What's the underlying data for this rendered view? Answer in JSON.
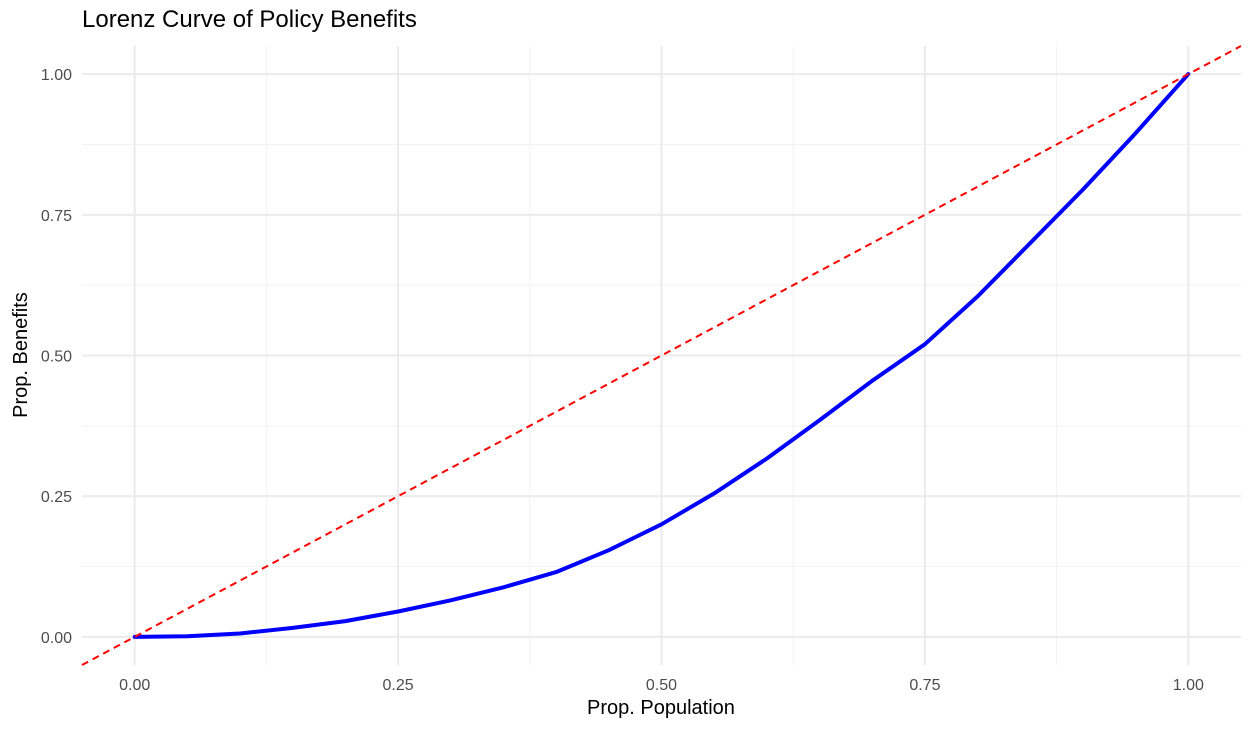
{
  "chart_data": {
    "type": "line",
    "title": "Lorenz Curve of Policy Benefits",
    "xlabel": "Prop. Population",
    "ylabel": "Prop. Benefits",
    "xlim": [
      -0.05,
      1.05
    ],
    "ylim": [
      -0.05,
      1.05
    ],
    "x_ticks": [
      0,
      0.25,
      0.5,
      0.75,
      1
    ],
    "x_tick_labels": [
      "0.00",
      "0.25",
      "0.50",
      "0.75",
      "1.00"
    ],
    "y_ticks": [
      0,
      0.25,
      0.5,
      0.75,
      1
    ],
    "y_tick_labels": [
      "0.00",
      "0.25",
      "0.50",
      "0.75",
      "1.00"
    ],
    "grid": true,
    "series": [
      {
        "style": "solid",
        "color": "#0000ff",
        "x": [
          0,
          0.05,
          0.1,
          0.15,
          0.2,
          0.25,
          0.3,
          0.35,
          0.4,
          0.45,
          0.5,
          0.55,
          0.6,
          0.65,
          0.7,
          0.75,
          0.8,
          0.85,
          0.9,
          0.95,
          1
        ],
        "y": [
          0,
          0.001,
          0.006,
          0.016,
          0.028,
          0.045,
          0.065,
          0.088,
          0.115,
          0.154,
          0.2,
          0.255,
          0.317,
          0.385,
          0.455,
          0.52,
          0.605,
          0.7,
          0.795,
          0.895,
          1
        ]
      },
      {
        "style": "dashed",
        "color": "#ff0000",
        "x": [
          -0.05,
          1.05
        ],
        "y": [
          -0.05,
          1.05
        ]
      }
    ]
  }
}
